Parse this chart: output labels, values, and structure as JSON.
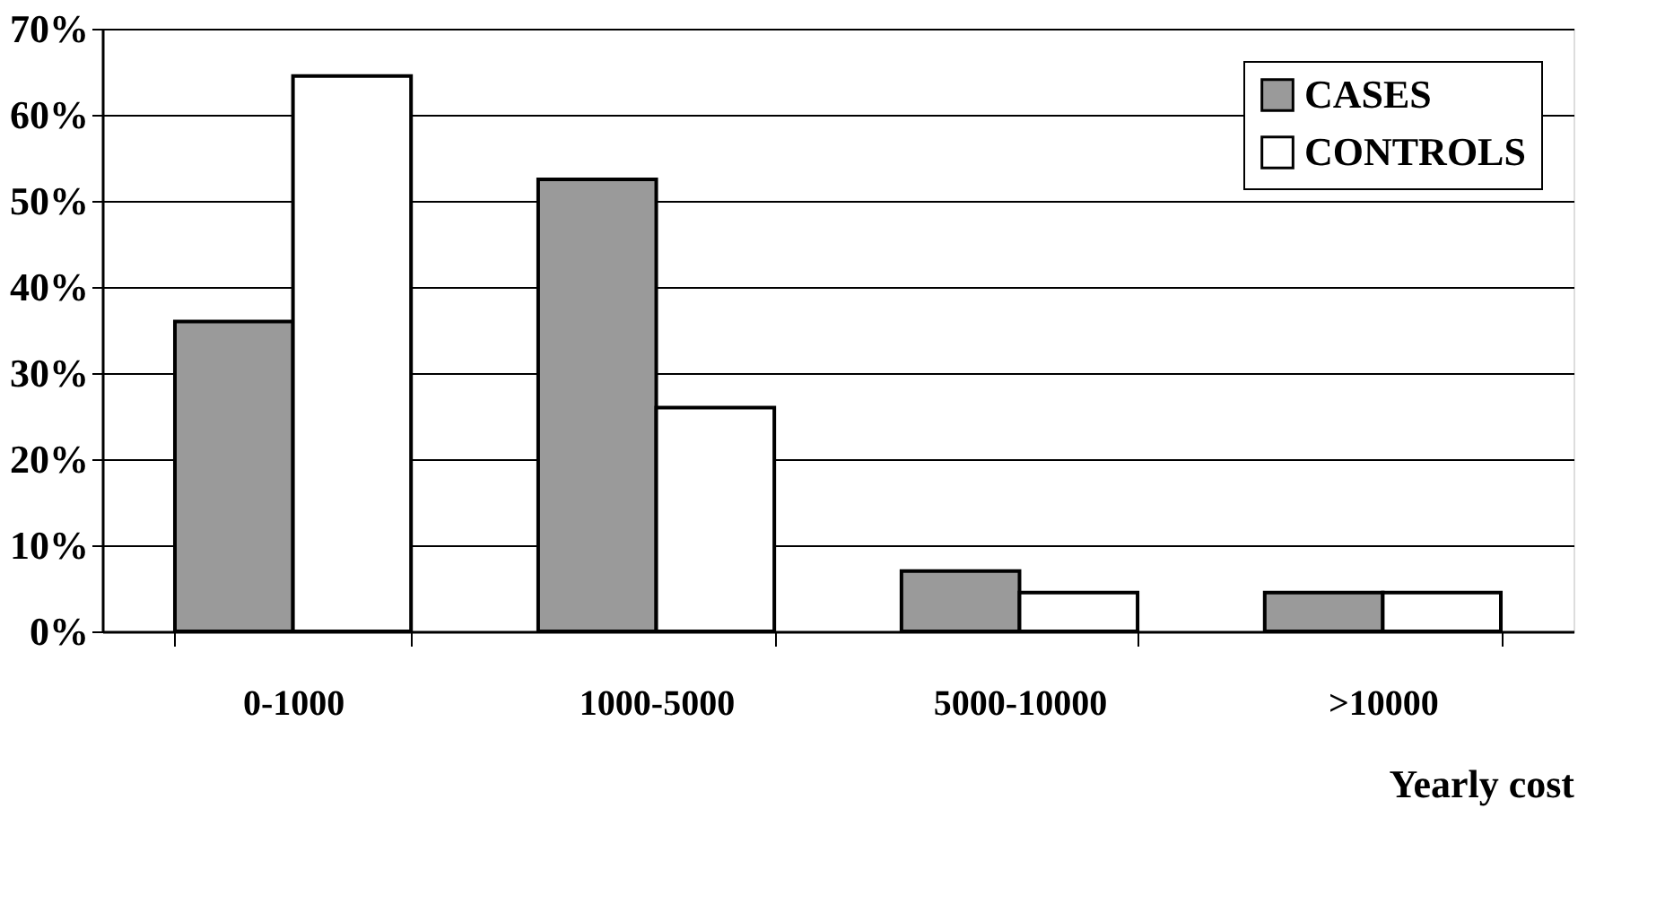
{
  "chart_data": {
    "type": "bar",
    "xlabel": "Yearly cost",
    "categories": [
      "0-1000",
      "1000-5000",
      "5000-10000",
      ">10000"
    ],
    "series": [
      {
        "name": "CASES",
        "color": "#9a9a9a",
        "values": [
          36,
          52.5,
          7,
          4.5
        ]
      },
      {
        "name": "CONTROLS",
        "color": "#ffffff",
        "values": [
          64.5,
          26,
          4.5,
          4.5
        ]
      }
    ],
    "ylim": [
      0,
      70
    ],
    "yticks": [
      {
        "value": 0,
        "label": "0%"
      },
      {
        "value": 10,
        "label": "10%"
      },
      {
        "value": 20,
        "label": "20%"
      },
      {
        "value": 30,
        "label": "30%"
      },
      {
        "value": 40,
        "label": "40%"
      },
      {
        "value": 50,
        "label": "50%"
      },
      {
        "value": 60,
        "label": "60%"
      },
      {
        "value": 70,
        "label": "70%"
      }
    ],
    "grid": "y",
    "legend": "top right"
  }
}
